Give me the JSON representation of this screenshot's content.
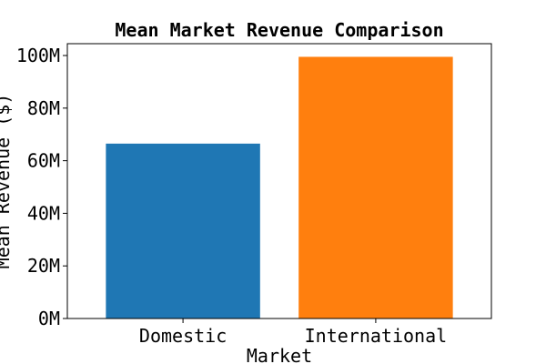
{
  "chart_data": {
    "type": "bar",
    "title": "Mean Market Revenue Comparison",
    "xlabel": "Market",
    "ylabel": "Mean Revenue ($)",
    "categories": [
      "Domestic",
      "International"
    ],
    "values": [
      66500000,
      99500000
    ],
    "colors": [
      "#1f77b4",
      "#ff7f0e"
    ],
    "ylim": [
      0,
      104500000
    ],
    "yticks": [
      0,
      20000000,
      40000000,
      60000000,
      80000000,
      100000000
    ],
    "ytick_labels": [
      "0M",
      "20M",
      "40M",
      "60M",
      "80M",
      "100M"
    ],
    "grid": false,
    "legend": "none"
  }
}
